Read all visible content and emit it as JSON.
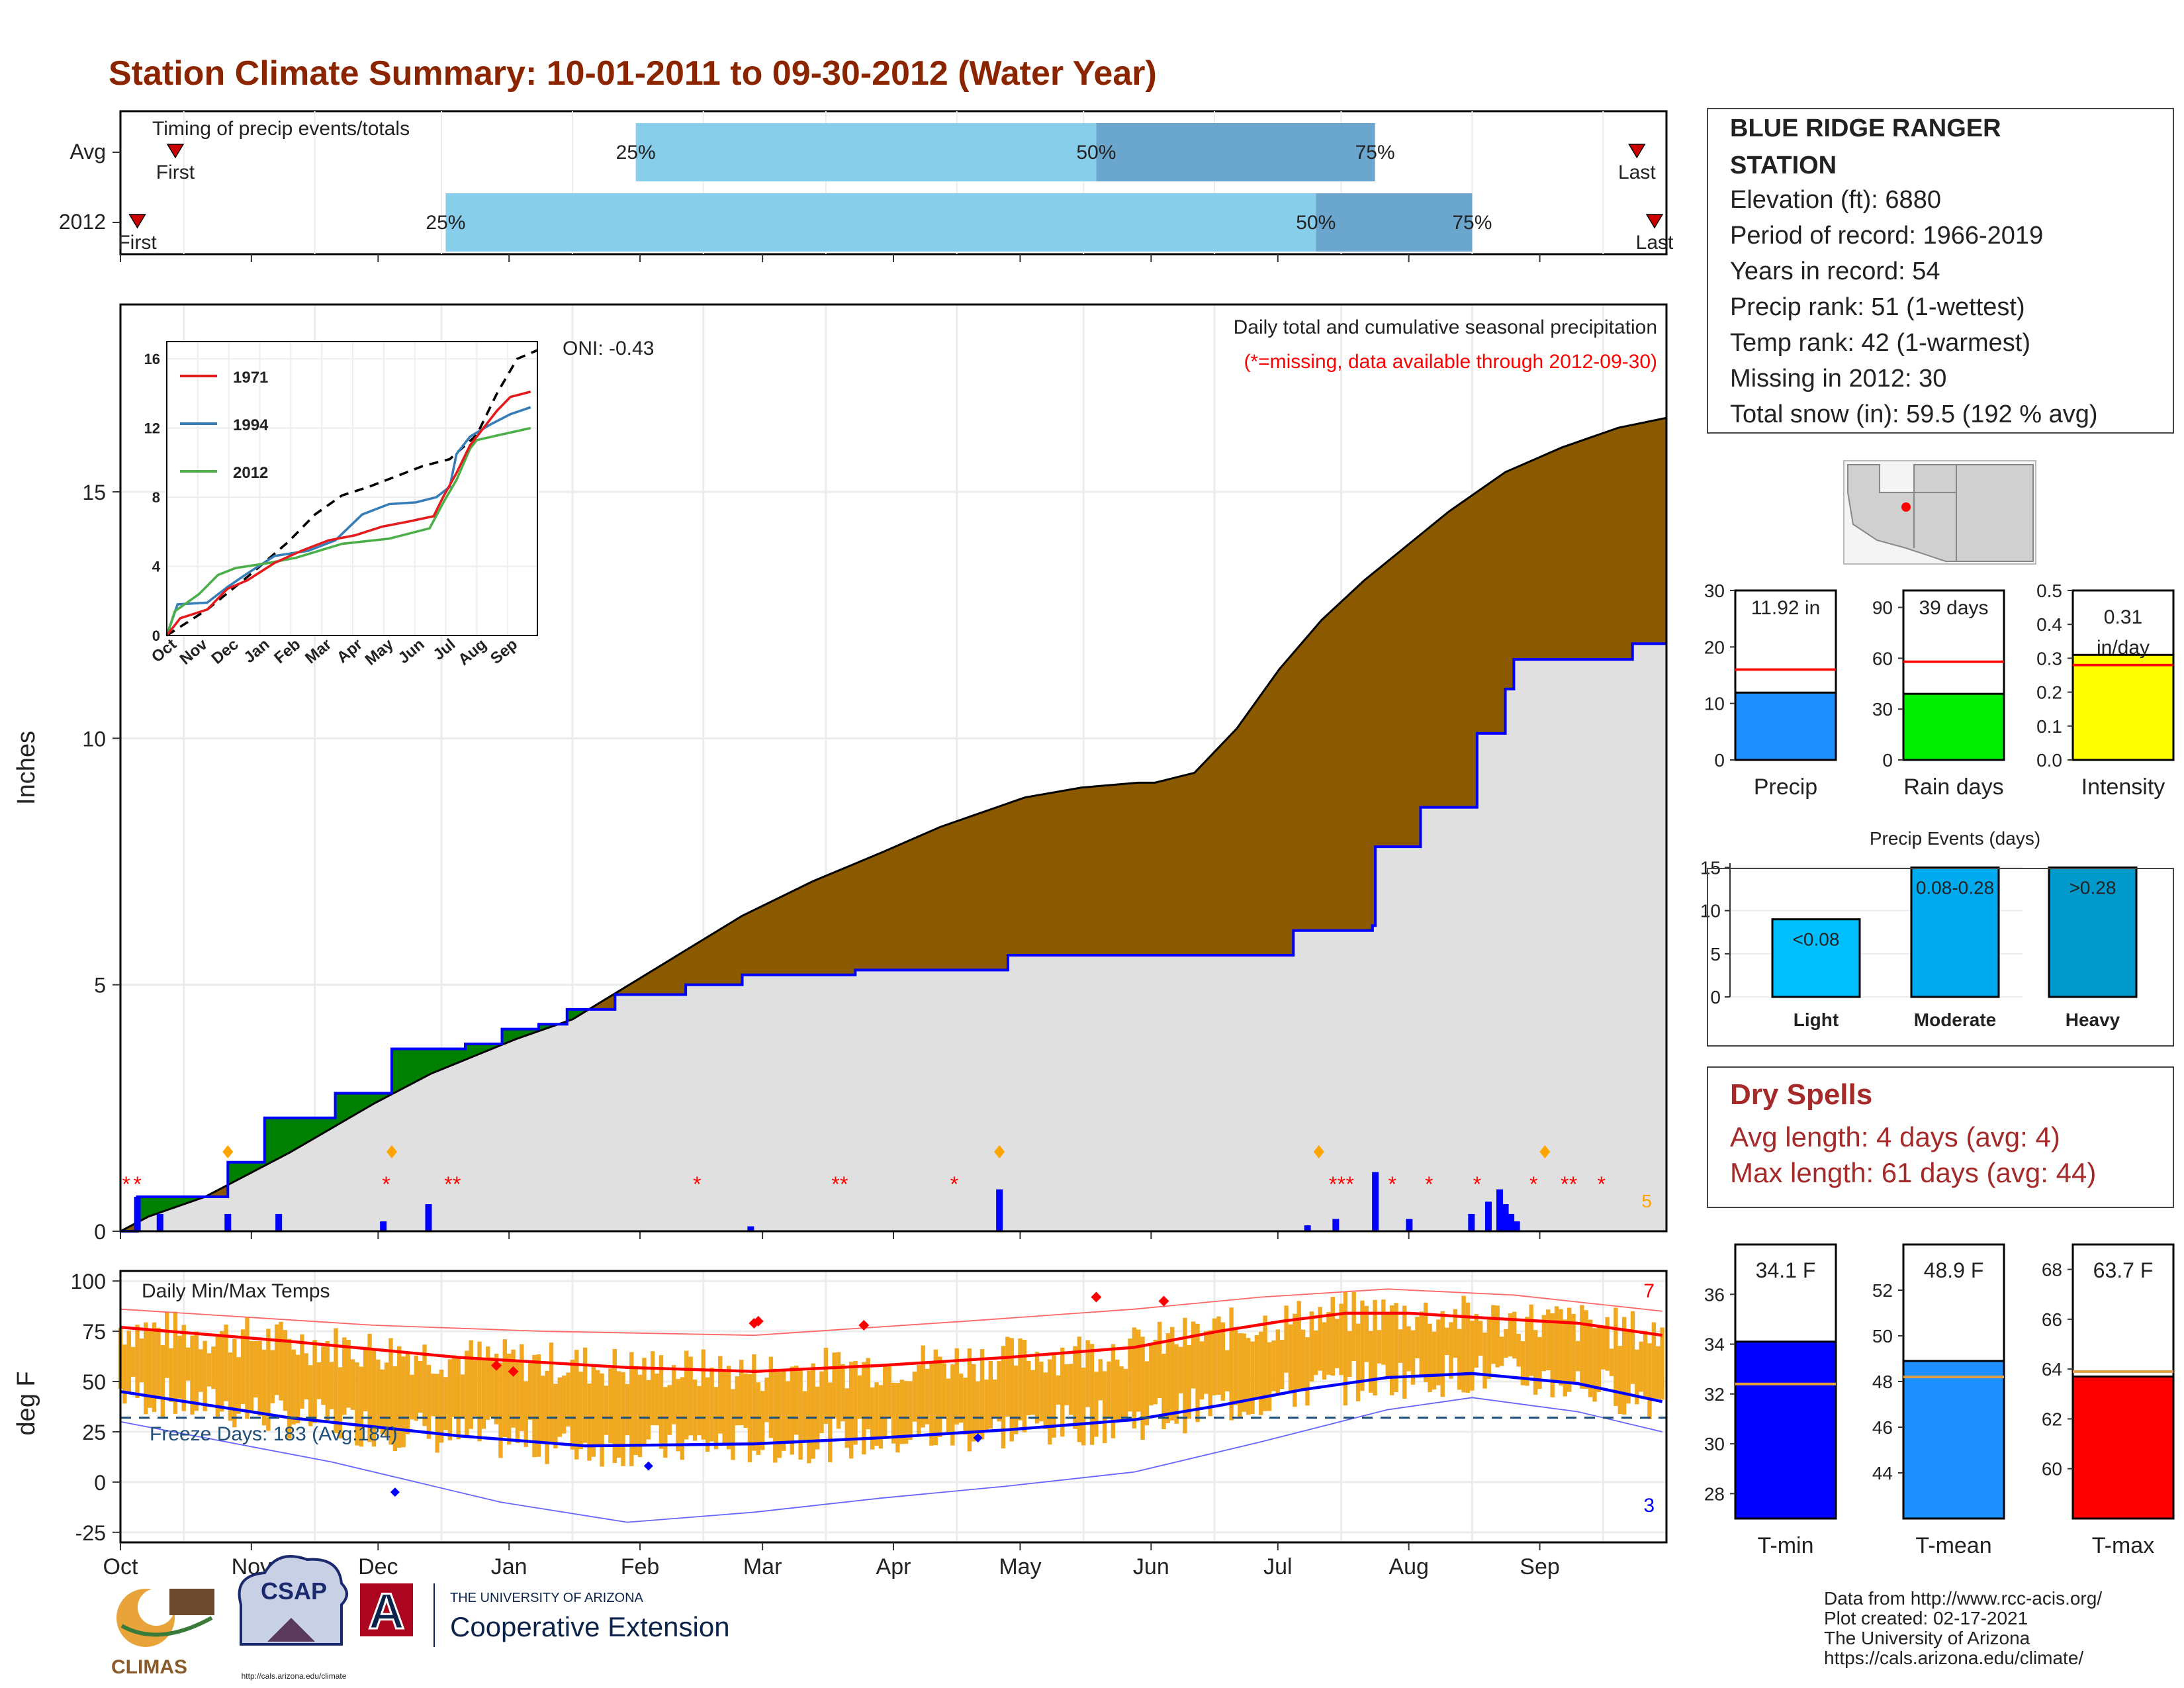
{
  "title": "Station Climate Summary: 10-01-2011 to 09-30-2012 (Water Year)",
  "colors": {
    "title": "#8b2500",
    "missing": "#ff0000",
    "precip_fill": "#8b5a00",
    "dry_fill": "#008000",
    "avg_area": "#e0e0e0",
    "rank_line": "#ff0000",
    "tmin": "#0000ff",
    "tmean": "#1e90ff",
    "tmax": "#ff0000",
    "range_bar": "#f0a820",
    "freeze": "#1f4e79",
    "light": "#00bfff",
    "moderate": "#00aaee",
    "heavy": "#0099cc"
  },
  "timing": {
    "label": "Timing of precip events/totals",
    "rows": [
      {
        "name": "Avg",
        "first": "First",
        "last": "Last",
        "first_day": 13,
        "last_day": 359,
        "p25": 122,
        "p50": 231,
        "p75": 297
      },
      {
        "name": "2012",
        "first": "First",
        "last": "Last",
        "first_day": 4,
        "last_day": 366,
        "p25": 77,
        "p50": 283,
        "p75": 320
      }
    ],
    "p25_label": "25%",
    "p50_label": "50%",
    "p75_label": "75%"
  },
  "months": [
    "Oct",
    "Nov",
    "Dec",
    "Jan",
    "Feb",
    "Mar",
    "Apr",
    "May",
    "Jun",
    "Jul",
    "Aug",
    "Sep"
  ],
  "precip": {
    "ylabel": "Inches",
    "yticks": [
      "0",
      "5",
      "10",
      "15"
    ],
    "note1": "Daily total and cumulative seasonal precipitation",
    "note2": "(*=missing, data available through 2012-09-30)",
    "oni": "ONI: -0.43",
    "max_daily_count": "5",
    "avg_cumulative": [
      [
        0,
        0
      ],
      [
        10,
        0.3
      ],
      [
        30,
        0.7
      ],
      [
        60,
        1.6
      ],
      [
        90,
        2.6
      ],
      [
        110,
        3.2
      ],
      [
        140,
        3.9
      ],
      [
        160,
        4.3
      ],
      [
        180,
        5.0
      ],
      [
        200,
        5.7
      ],
      [
        220,
        6.4
      ],
      [
        245,
        7.1
      ],
      [
        270,
        7.7
      ],
      [
        290,
        8.2
      ],
      [
        300,
        8.4
      ],
      [
        320,
        8.8
      ],
      [
        340,
        9.0
      ],
      [
        360,
        9.1
      ],
      [
        366,
        9.1
      ],
      [
        380,
        9.3
      ],
      [
        395,
        10.2
      ],
      [
        410,
        11.4
      ],
      [
        425,
        12.4
      ],
      [
        440,
        13.2
      ],
      [
        455,
        13.9
      ],
      [
        470,
        14.6
      ],
      [
        490,
        15.4
      ],
      [
        510,
        15.9
      ],
      [
        530,
        16.3
      ],
      [
        547,
        16.5
      ]
    ],
    "year_cumulative": [
      [
        0,
        0
      ],
      [
        6,
        0.7
      ],
      [
        24,
        0.7
      ],
      [
        38,
        1.4
      ],
      [
        51,
        2.3
      ],
      [
        76,
        2.8
      ],
      [
        96,
        3.7
      ],
      [
        122,
        3.8
      ],
      [
        135,
        4.1
      ],
      [
        148,
        4.2
      ],
      [
        158,
        4.5
      ],
      [
        175,
        4.8
      ],
      [
        200,
        5.0
      ],
      [
        220,
        5.2
      ],
      [
        235,
        5.2
      ],
      [
        260,
        5.3
      ],
      [
        280,
        5.3
      ],
      [
        313,
        5.3
      ],
      [
        314,
        5.6
      ],
      [
        390,
        5.6
      ],
      [
        415,
        6.1
      ],
      [
        443,
        6.2
      ],
      [
        444,
        7.8
      ],
      [
        460,
        8.6
      ],
      [
        480,
        10.1
      ],
      [
        490,
        11.0
      ],
      [
        493,
        11.6
      ],
      [
        535,
        11.92
      ],
      [
        547,
        11.92
      ]
    ],
    "daily_bars": [
      [
        6,
        0.7
      ],
      [
        14,
        0.35
      ],
      [
        38,
        0.35
      ],
      [
        56,
        0.35
      ],
      [
        93,
        0.2
      ],
      [
        109,
        0.55
      ],
      [
        223,
        0.1
      ],
      [
        311,
        0.85
      ],
      [
        420,
        0.12
      ],
      [
        430,
        0.25
      ],
      [
        444,
        1.2
      ],
      [
        456,
        0.25
      ],
      [
        478,
        0.35
      ],
      [
        484,
        0.6
      ],
      [
        488,
        0.85
      ],
      [
        490,
        0.55
      ],
      [
        492,
        0.35
      ],
      [
        494,
        0.2
      ]
    ],
    "missing_days": [
      2,
      6,
      94,
      116,
      119,
      204,
      253,
      256,
      295,
      429,
      432,
      435,
      450,
      463,
      480,
      500,
      511,
      514,
      524
    ]
  },
  "inset": {
    "years": [
      "1971",
      "1994",
      "2012"
    ],
    "colors": [
      "#e41a1c",
      "#377eb8",
      "#4daf4a"
    ],
    "yticks": [
      "0",
      "4",
      "8",
      "12",
      "16"
    ],
    "months": [
      "Oct",
      "Nov",
      "Dec",
      "Jan",
      "Feb",
      "Mar",
      "Apr",
      "May",
      "Jun",
      "Jul",
      "Aug",
      "Sep"
    ],
    "avg": [
      [
        0,
        0
      ],
      [
        30,
        1.5
      ],
      [
        60,
        3.4
      ],
      [
        90,
        5.4
      ],
      [
        110,
        7.0
      ],
      [
        130,
        8.1
      ],
      [
        150,
        8.6
      ],
      [
        170,
        9.2
      ],
      [
        190,
        9.8
      ],
      [
        210,
        10.2
      ],
      [
        230,
        11.6
      ],
      [
        245,
        14.0
      ],
      [
        260,
        16.0
      ],
      [
        275,
        16.5
      ]
    ],
    "s1971": [
      [
        0,
        0
      ],
      [
        10,
        1.0
      ],
      [
        30,
        1.5
      ],
      [
        45,
        2.7
      ],
      [
        60,
        3.2
      ],
      [
        80,
        4.2
      ],
      [
        100,
        4.9
      ],
      [
        120,
        5.5
      ],
      [
        140,
        5.8
      ],
      [
        160,
        6.3
      ],
      [
        180,
        6.6
      ],
      [
        198,
        6.9
      ],
      [
        205,
        8.0
      ],
      [
        215,
        9.4
      ],
      [
        225,
        11.0
      ],
      [
        235,
        12.0
      ],
      [
        245,
        13.0
      ],
      [
        255,
        13.8
      ],
      [
        270,
        14.1
      ]
    ],
    "s1994": [
      [
        0,
        0
      ],
      [
        8,
        1.8
      ],
      [
        30,
        1.9
      ],
      [
        45,
        2.8
      ],
      [
        60,
        3.6
      ],
      [
        80,
        4.6
      ],
      [
        105,
        4.9
      ],
      [
        125,
        5.5
      ],
      [
        145,
        7.0
      ],
      [
        165,
        7.6
      ],
      [
        185,
        7.7
      ],
      [
        200,
        8.0
      ],
      [
        210,
        8.6
      ],
      [
        215,
        10.5
      ],
      [
        225,
        11.5
      ],
      [
        240,
        12.2
      ],
      [
        255,
        12.8
      ],
      [
        270,
        13.2
      ]
    ],
    "s2012": [
      [
        0,
        0
      ],
      [
        6,
        1.4
      ],
      [
        24,
        2.4
      ],
      [
        38,
        3.5
      ],
      [
        51,
        3.9
      ],
      [
        76,
        4.2
      ],
      [
        96,
        4.5
      ],
      [
        130,
        5.3
      ],
      [
        165,
        5.6
      ],
      [
        195,
        6.2
      ],
      [
        206,
        7.8
      ],
      [
        215,
        9.0
      ],
      [
        225,
        10.8
      ],
      [
        230,
        11.3
      ],
      [
        247,
        11.6
      ],
      [
        270,
        12.0
      ]
    ]
  },
  "temp": {
    "label": "Daily Min/Max Temps",
    "ylabel": "deg F",
    "yticks": [
      "100",
      "75",
      "50",
      "25",
      "0",
      "-25"
    ],
    "freeze": "Freeze Days: 183 (Avg:184)",
    "freeze_level": 32,
    "max_count": "7",
    "min_count": "3",
    "max_avg": [
      [
        0,
        77
      ],
      [
        40,
        70
      ],
      [
        80,
        62
      ],
      [
        120,
        57
      ],
      [
        150,
        55
      ],
      [
        180,
        58
      ],
      [
        210,
        62
      ],
      [
        240,
        67
      ],
      [
        260,
        75
      ],
      [
        275,
        80
      ],
      [
        290,
        84
      ],
      [
        305,
        84
      ],
      [
        320,
        82
      ],
      [
        345,
        79
      ],
      [
        365,
        73
      ]
    ],
    "min_avg": [
      [
        0,
        45
      ],
      [
        40,
        32
      ],
      [
        80,
        23
      ],
      [
        110,
        18
      ],
      [
        150,
        19
      ],
      [
        180,
        22
      ],
      [
        210,
        26
      ],
      [
        240,
        31
      ],
      [
        260,
        38
      ],
      [
        280,
        46
      ],
      [
        300,
        52
      ],
      [
        320,
        54
      ],
      [
        345,
        49
      ],
      [
        365,
        40
      ]
    ],
    "max_rec": [
      [
        0,
        86
      ],
      [
        60,
        78
      ],
      [
        100,
        75
      ],
      [
        150,
        73
      ],
      [
        200,
        80
      ],
      [
        240,
        86
      ],
      [
        270,
        92
      ],
      [
        300,
        96
      ],
      [
        330,
        93
      ],
      [
        365,
        85
      ]
    ],
    "min_rec": [
      [
        0,
        30
      ],
      [
        50,
        10
      ],
      [
        90,
        -10
      ],
      [
        120,
        -20
      ],
      [
        150,
        -15
      ],
      [
        180,
        -8
      ],
      [
        210,
        -2
      ],
      [
        240,
        5
      ],
      [
        270,
        20
      ],
      [
        300,
        36
      ],
      [
        320,
        42
      ],
      [
        345,
        35
      ],
      [
        365,
        25
      ]
    ]
  },
  "station": {
    "name": "BLUE RIDGE RANGER STATION",
    "elevation": "Elevation (ft): 6880",
    "period": "Period of record: 1966-2019",
    "years": "Years in record: 54",
    "precip_rank": "Precip rank: 51 (1-wettest)",
    "temp_rank": "Temp rank: 42 (1-warmest)",
    "missing": "Missing in 2012: 30",
    "snow": "Total snow (in): 59.5 (192 % avg)"
  },
  "bars": {
    "precip": {
      "label": "Precip",
      "value_text": "11.92 in",
      "value": 11.92,
      "avg": 16.0,
      "ymax": 30,
      "yticks": [
        "0",
        "10",
        "20",
        "30"
      ],
      "color": "#1e90ff"
    },
    "raindays": {
      "label": "Rain days",
      "value_text": "39 days",
      "value": 39,
      "avg": 58,
      "ymax": 100,
      "yticks": [
        "0",
        "30",
        "60",
        "90"
      ],
      "color": "#00ee00"
    },
    "intensity": {
      "label": "Intensity",
      "value_text": "0.31 in/day",
      "value": 0.31,
      "avg": 0.28,
      "ymax": 0.5,
      "yticks": [
        "0.0",
        "0.1",
        "0.2",
        "0.3",
        "0.4",
        "0.5"
      ],
      "color": "#ffff00"
    }
  },
  "events": {
    "title": "Precip Events (days)",
    "yticks": [
      "0",
      "5",
      "10",
      "15"
    ],
    "cats": [
      {
        "label": "Light",
        "bin": "<0.08",
        "value": 9,
        "color": "#00bfff"
      },
      {
        "label": "Moderate",
        "bin": "0.08-0.28",
        "value": 15,
        "color": "#00aaee"
      },
      {
        "label": "Heavy",
        "bin": ">0.28",
        "value": 15,
        "color": "#0099cc"
      }
    ]
  },
  "dry": {
    "title": "Dry Spells",
    "avg": "Avg length: 4 days (avg: 4)",
    "max": "Max length: 61 days (avg: 44)"
  },
  "tbars": {
    "tmin": {
      "label": "T-min",
      "value_text": "34.1 F",
      "value": 34.1,
      "avg": 32.4,
      "min": 27,
      "max": 38,
      "yticks": [
        "28",
        "30",
        "32",
        "34",
        "36"
      ],
      "color": "#0000ff"
    },
    "tmean": {
      "label": "T-mean",
      "value_text": "48.9 F",
      "value": 48.9,
      "avg": 48.2,
      "min": 42,
      "max": 54,
      "yticks": [
        "44",
        "46",
        "48",
        "50",
        "52"
      ],
      "color": "#1e90ff"
    },
    "tmax": {
      "label": "T-max",
      "value_text": "63.7 F",
      "value": 63.7,
      "avg": 63.9,
      "min": 58,
      "max": 69,
      "yticks": [
        "60",
        "62",
        "64",
        "66",
        "68"
      ],
      "color": "#ff0000"
    }
  },
  "footer": {
    "line1": "Data from http://www.rcc-acis.org/",
    "line2": "Plot created: 02-17-2021",
    "line3": "The University of Arizona",
    "line4": "https://cals.arizona.edu/climate/",
    "logo1": "CLIMAS",
    "logo2": "CSAP",
    "logo2_url": "http://cals.arizona.edu/climate",
    "ua_line1": "THE UNIVERSITY OF ARIZONA",
    "ua_line2": "Cooperative Extension",
    "ua_letter": "A"
  }
}
